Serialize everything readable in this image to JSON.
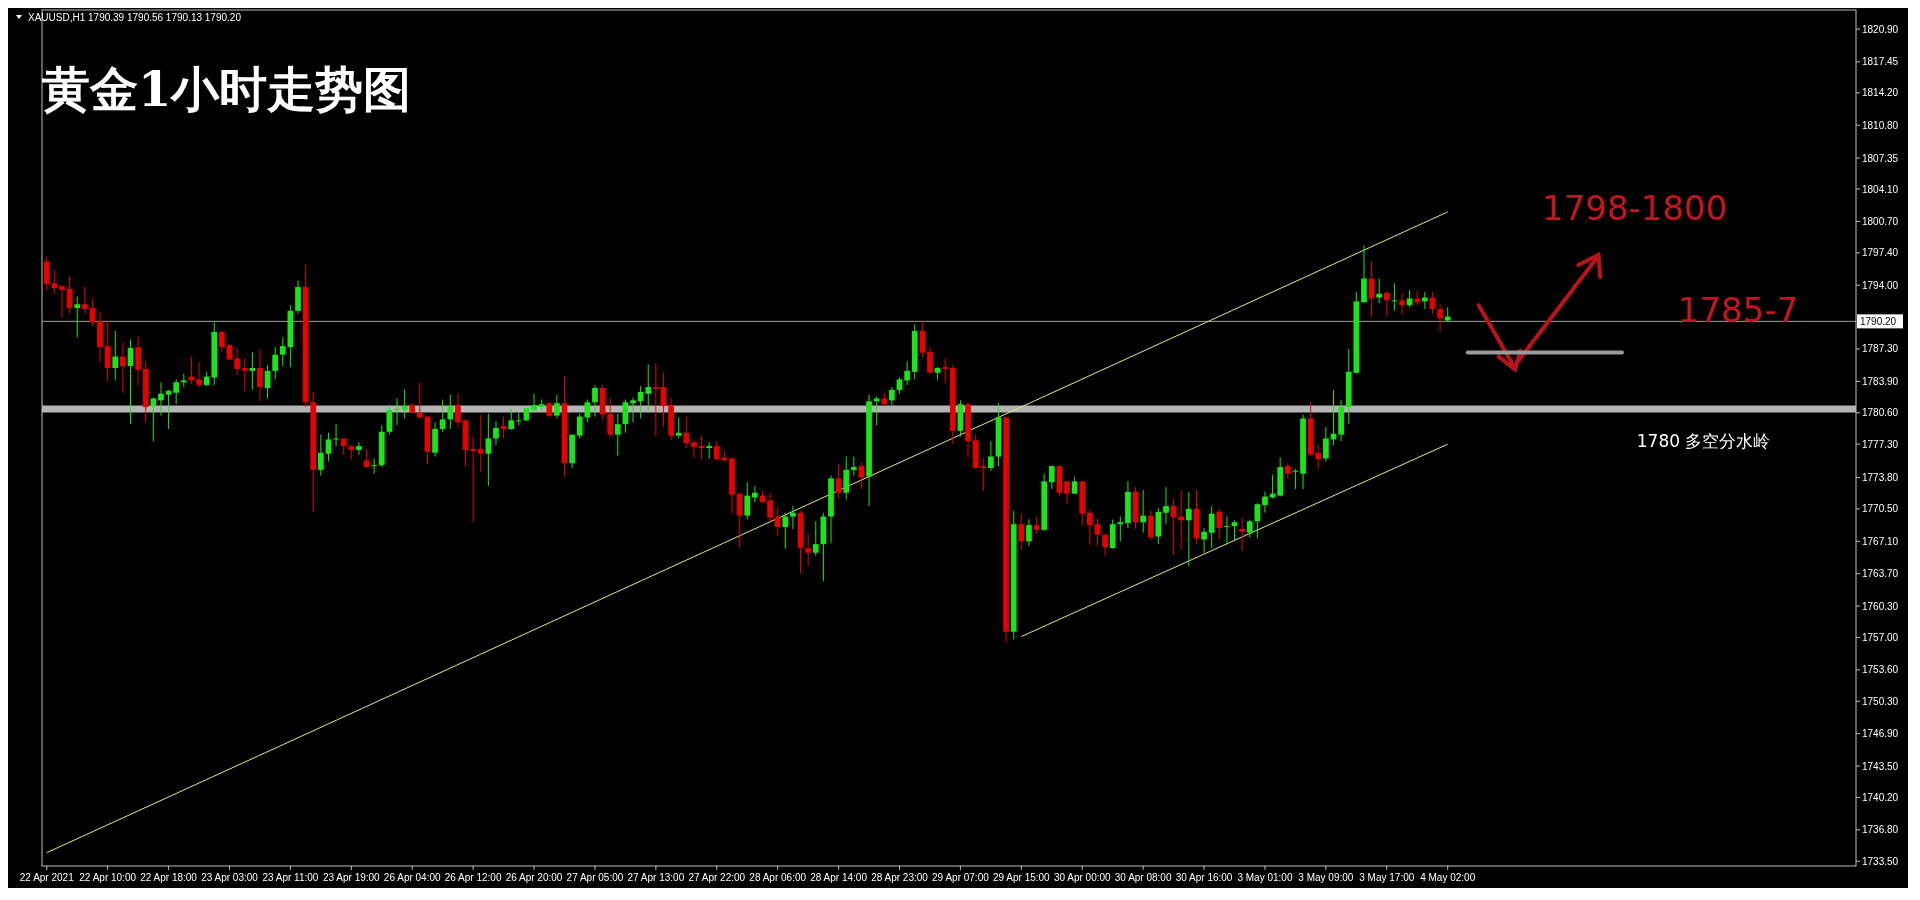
{
  "chart_data": {
    "type": "candlestick",
    "title": "黄金1小时走势图",
    "subtitle": "XAUUSD,H1  1790.39 1790.56 1790.13 1790.20",
    "categories": [
      "22 Apr 2021",
      null,
      null,
      null,
      null,
      null,
      null,
      null,
      "22 Apr 10:00",
      null,
      null,
      null,
      null,
      null,
      null,
      null,
      "22 Apr 18:00",
      null,
      null,
      null,
      null,
      null,
      null,
      null,
      "23 Apr 03:00",
      null,
      null,
      null,
      null,
      null,
      null,
      null,
      "23 Apr 11:00",
      null,
      null,
      null,
      null,
      null,
      null,
      null,
      "23 Apr 19:00",
      null,
      null,
      null,
      null,
      null,
      null,
      null,
      "26 Apr 04:00",
      null,
      null,
      null,
      null,
      null,
      null,
      null,
      "26 Apr 12:00",
      null,
      null,
      null,
      null,
      null,
      null,
      null,
      "26 Apr 20:00",
      null,
      null,
      null,
      null,
      null,
      null,
      null,
      "27 Apr 05:00",
      null,
      null,
      null,
      null,
      null,
      null,
      null,
      "27 Apr 13:00",
      null,
      null,
      null,
      null,
      null,
      null,
      null,
      "27 Apr 22:00",
      null,
      null,
      null,
      null,
      null,
      null,
      null,
      "28 Apr 06:00",
      null,
      null,
      null,
      null,
      null,
      null,
      null,
      "28 Apr 14:00",
      null,
      null,
      null,
      null,
      null,
      null,
      null,
      "28 Apr 23:00",
      null,
      null,
      null,
      null,
      null,
      null,
      null,
      "29 Apr 07:00",
      null,
      null,
      null,
      null,
      null,
      null,
      null,
      "29 Apr 15:00",
      null,
      null,
      null,
      null,
      null,
      null,
      null,
      "30 Apr 00:00",
      null,
      null,
      null,
      null,
      null,
      null,
      null,
      "30 Apr 08:00",
      null,
      null,
      null,
      null,
      null,
      null,
      null,
      "30 Apr 16:00",
      null,
      null,
      null,
      null,
      null,
      null,
      null,
      "3 May 01:00",
      null,
      null,
      null,
      null,
      null,
      null,
      null,
      "3 May 09:00",
      null,
      null,
      null,
      null,
      null,
      null,
      null,
      "3 May 17:00",
      null,
      null,
      null,
      null,
      null,
      null,
      null,
      "4 May 02:00",
      null,
      null,
      null,
      null,
      null,
      null,
      null,
      null,
      null,
      null,
      null,
      null,
      null,
      null,
      null,
      null,
      null,
      null,
      null,
      null,
      null,
      null,
      null,
      null,
      null,
      null,
      null,
      null,
      null,
      null,
      null,
      null,
      null,
      null,
      null,
      null,
      null,
      null,
      null,
      null,
      null,
      null,
      null,
      null,
      null,
      null,
      null,
      null,
      null,
      null,
      null,
      null,
      null
    ],
    "ohlc": [
      [
        1796.5,
        1797.0,
        1793.4,
        1794.1
      ],
      [
        1794.2,
        1795.6,
        1793.1,
        1793.7
      ],
      [
        1793.9,
        1794.0,
        1790.6,
        1793.5
      ],
      [
        1793.6,
        1795.0,
        1791.0,
        1791.6
      ],
      [
        1791.6,
        1792.8,
        1788.5,
        1792.0
      ],
      [
        1792.0,
        1793.9,
        1791.0,
        1791.5
      ],
      [
        1791.6,
        1792.6,
        1789.7,
        1790.1
      ],
      [
        1790.2,
        1791.2,
        1785.9,
        1787.5
      ],
      [
        1787.6,
        1790.2,
        1783.9,
        1785.3
      ],
      [
        1785.3,
        1789.2,
        1784.0,
        1786.5
      ],
      [
        1786.5,
        1788.0,
        1782.7,
        1785.5
      ],
      [
        1785.5,
        1788.3,
        1779.4,
        1787.4
      ],
      [
        1787.5,
        1788.6,
        1783.5,
        1785.1
      ],
      [
        1785.2,
        1786.0,
        1779.6,
        1781.2
      ],
      [
        1781.3,
        1782.2,
        1777.6,
        1782.1
      ],
      [
        1781.9,
        1783.8,
        1780.3,
        1782.6
      ],
      [
        1782.5,
        1783.0,
        1778.9,
        1782.9
      ],
      [
        1782.7,
        1784.1,
        1781.5,
        1783.8
      ],
      [
        1783.8,
        1784.7,
        1783.3,
        1784.0
      ],
      [
        1784.4,
        1786.5,
        1783.6,
        1784.0
      ],
      [
        1784.1,
        1785.9,
        1783.2,
        1783.5
      ],
      [
        1783.5,
        1784.9,
        1783.4,
        1784.4
      ],
      [
        1784.3,
        1790.1,
        1783.5,
        1789.1
      ],
      [
        1789.1,
        1789.2,
        1787.0,
        1787.5
      ],
      [
        1787.7,
        1787.8,
        1786.1,
        1786.2
      ],
      [
        1786.3,
        1787.4,
        1784.6,
        1785.2
      ],
      [
        1785.3,
        1786.3,
        1782.9,
        1785.0
      ],
      [
        1785.0,
        1787.0,
        1783.0,
        1785.3
      ],
      [
        1785.3,
        1787.3,
        1781.8,
        1783.3
      ],
      [
        1783.2,
        1785.6,
        1782.1,
        1785.0
      ],
      [
        1785.0,
        1787.5,
        1784.1,
        1786.7
      ],
      [
        1786.7,
        1788.5,
        1785.5,
        1787.6
      ],
      [
        1787.5,
        1791.9,
        1785.4,
        1791.3
      ],
      [
        1791.3,
        1794.5,
        1791.0,
        1793.8
      ],
      [
        1793.8,
        1796.2,
        1781.2,
        1781.7
      ],
      [
        1781.7,
        1782.8,
        1770.2,
        1774.6
      ],
      [
        1774.6,
        1778.3,
        1774.0,
        1776.4
      ],
      [
        1776.3,
        1778.5,
        1775.5,
        1777.8
      ],
      [
        1777.8,
        1779.4,
        1777.1,
        1777.9
      ],
      [
        1777.9,
        1777.9,
        1776.2,
        1777.1
      ],
      [
        1777.1,
        1777.2,
        1775.7,
        1776.7
      ],
      [
        1776.7,
        1777.5,
        1776.2,
        1777.1
      ],
      [
        1775.6,
        1776.8,
        1774.8,
        1774.9
      ],
      [
        1775.0,
        1775.8,
        1774.2,
        1775.1
      ],
      [
        1775.1,
        1779.3,
        1774.9,
        1778.6
      ],
      [
        1778.6,
        1781.4,
        1778.3,
        1780.9
      ],
      [
        1780.9,
        1782.1,
        1779.3,
        1781.0
      ],
      [
        1780.9,
        1783.1,
        1780.0,
        1781.3
      ],
      [
        1781.4,
        1781.6,
        1780.5,
        1780.6
      ],
      [
        1780.6,
        1783.8,
        1780.0,
        1780.1
      ],
      [
        1780.2,
        1780.3,
        1775.2,
        1776.5
      ],
      [
        1776.4,
        1779.6,
        1776.0,
        1778.9
      ],
      [
        1778.9,
        1782.0,
        1778.6,
        1779.9
      ],
      [
        1779.9,
        1782.5,
        1778.9,
        1781.3
      ],
      [
        1781.4,
        1782.6,
        1779.0,
        1779.6
      ],
      [
        1779.8,
        1779.9,
        1775.0,
        1776.7
      ],
      [
        1776.8,
        1778.1,
        1769.1,
        1776.6
      ],
      [
        1776.8,
        1780.4,
        1774.4,
        1776.3
      ],
      [
        1776.3,
        1780.5,
        1772.9,
        1777.9
      ],
      [
        1777.9,
        1779.7,
        1777.2,
        1779.0
      ],
      [
        1779.2,
        1780.2,
        1777.9,
        1778.9
      ],
      [
        1778.9,
        1781.0,
        1778.8,
        1779.8
      ],
      [
        1779.7,
        1780.6,
        1779.3,
        1779.8
      ],
      [
        1779.8,
        1781.1,
        1779.7,
        1781.1
      ],
      [
        1780.9,
        1782.6,
        1780.6,
        1781.4
      ],
      [
        1781.2,
        1782.0,
        1780.6,
        1781.5
      ],
      [
        1781.6,
        1781.7,
        1780.1,
        1780.3
      ],
      [
        1780.3,
        1782.5,
        1780.0,
        1781.6
      ],
      [
        1781.6,
        1784.4,
        1773.9,
        1775.3
      ],
      [
        1775.3,
        1778.3,
        1774.8,
        1778.3
      ],
      [
        1778.2,
        1780.5,
        1777.9,
        1780.2
      ],
      [
        1780.1,
        1782.0,
        1779.6,
        1781.7
      ],
      [
        1781.7,
        1783.5,
        1780.2,
        1783.2
      ],
      [
        1783.2,
        1783.5,
        1779.9,
        1780.4
      ],
      [
        1780.5,
        1782.2,
        1778.0,
        1778.3
      ],
      [
        1778.3,
        1780.5,
        1776.1,
        1779.4
      ],
      [
        1779.4,
        1782.0,
        1778.5,
        1781.7
      ],
      [
        1781.6,
        1782.2,
        1779.6,
        1781.9
      ],
      [
        1781.8,
        1783.4,
        1780.0,
        1782.8
      ],
      [
        1782.6,
        1785.7,
        1780.6,
        1783.3
      ],
      [
        1783.3,
        1785.8,
        1778.1,
        1783.1
      ],
      [
        1783.3,
        1784.8,
        1779.1,
        1781.3
      ],
      [
        1781.4,
        1782.2,
        1777.7,
        1778.2
      ],
      [
        1778.2,
        1780.1,
        1777.9,
        1778.5
      ],
      [
        1778.5,
        1780.2,
        1776.9,
        1777.4
      ],
      [
        1777.5,
        1777.8,
        1775.9,
        1777.0
      ],
      [
        1777.1,
        1778.2,
        1775.7,
        1776.9
      ],
      [
        1776.9,
        1777.5,
        1775.8,
        1777.1
      ],
      [
        1777.1,
        1777.6,
        1775.6,
        1775.7
      ],
      [
        1775.9,
        1776.6,
        1775.5,
        1775.6
      ],
      [
        1775.8,
        1775.8,
        1770.0,
        1772.0
      ],
      [
        1772.1,
        1772.1,
        1766.5,
        1769.8
      ],
      [
        1769.8,
        1773.3,
        1769.4,
        1771.9
      ],
      [
        1771.7,
        1772.9,
        1771.2,
        1772.2
      ],
      [
        1771.9,
        1772.4,
        1771.1,
        1771.2
      ],
      [
        1771.4,
        1772.2,
        1769.0,
        1769.6
      ],
      [
        1769.7,
        1770.7,
        1767.7,
        1768.6
      ],
      [
        1768.6,
        1770.1,
        1766.3,
        1769.7
      ],
      [
        1769.7,
        1770.8,
        1768.4,
        1770.1
      ],
      [
        1770.1,
        1770.3,
        1763.7,
        1766.4
      ],
      [
        1766.4,
        1767.9,
        1764.5,
        1765.9
      ],
      [
        1765.9,
        1769.2,
        1765.6,
        1766.8
      ],
      [
        1766.8,
        1770.1,
        1762.9,
        1769.7
      ],
      [
        1769.7,
        1774.0,
        1766.9,
        1773.7
      ],
      [
        1773.7,
        1775.2,
        1771.6,
        1772.2
      ],
      [
        1772.2,
        1776.0,
        1771.5,
        1774.6
      ],
      [
        1774.6,
        1776.0,
        1774.0,
        1774.9
      ],
      [
        1775.0,
        1775.4,
        1772.6,
        1773.8
      ],
      [
        1773.9,
        1782.5,
        1770.8,
        1781.8
      ],
      [
        1781.8,
        1782.3,
        1779.3,
        1782.1
      ],
      [
        1782.1,
        1782.7,
        1781.3,
        1781.5
      ],
      [
        1781.9,
        1783.3,
        1781.4,
        1783.0
      ],
      [
        1783.0,
        1784.3,
        1782.6,
        1784.1
      ],
      [
        1784.0,
        1786.0,
        1783.5,
        1785.0
      ],
      [
        1784.9,
        1789.9,
        1784.1,
        1789.2
      ],
      [
        1789.2,
        1790.2,
        1786.4,
        1786.9
      ],
      [
        1787.0,
        1787.5,
        1784.7,
        1784.8
      ],
      [
        1784.8,
        1785.4,
        1784.0,
        1785.3
      ],
      [
        1785.4,
        1786.3,
        1783.7,
        1785.2
      ],
      [
        1785.3,
        1785.6,
        1777.3,
        1778.7
      ],
      [
        1778.7,
        1781.9,
        1778.1,
        1781.5
      ],
      [
        1781.5,
        1781.7,
        1775.9,
        1777.6
      ],
      [
        1777.7,
        1778.3,
        1774.7,
        1774.8
      ],
      [
        1775.0,
        1775.8,
        1772.4,
        1774.8
      ],
      [
        1774.8,
        1777.6,
        1774.5,
        1776.0
      ],
      [
        1776.0,
        1781.6,
        1775.0,
        1780.1
      ],
      [
        1780.1,
        1780.2,
        1756.4,
        1757.6
      ],
      [
        1757.6,
        1770.3,
        1756.8,
        1768.9
      ],
      [
        1768.9,
        1770.0,
        1766.2,
        1767.1
      ],
      [
        1767.1,
        1769.4,
        1766.6,
        1768.8
      ],
      [
        1768.8,
        1769.7,
        1767.9,
        1768.3
      ],
      [
        1768.3,
        1774.2,
        1768.2,
        1773.4
      ],
      [
        1773.3,
        1775.0,
        1772.6,
        1775.0
      ],
      [
        1775.0,
        1775.1,
        1771.8,
        1772.2
      ],
      [
        1773.4,
        1773.4,
        1771.0,
        1772.1
      ],
      [
        1772.1,
        1773.9,
        1772.1,
        1773.4
      ],
      [
        1773.4,
        1773.4,
        1768.7,
        1770.0
      ],
      [
        1770.1,
        1770.5,
        1766.7,
        1768.8
      ],
      [
        1768.9,
        1769.5,
        1766.7,
        1767.8
      ],
      [
        1767.8,
        1767.8,
        1765.6,
        1766.5
      ],
      [
        1766.4,
        1769.4,
        1766.3,
        1768.9
      ],
      [
        1768.9,
        1769.7,
        1767.1,
        1769.1
      ],
      [
        1769.0,
        1773.4,
        1768.5,
        1772.3
      ],
      [
        1772.3,
        1772.8,
        1768.4,
        1769.1
      ],
      [
        1769.1,
        1772.5,
        1768.0,
        1769.8
      ],
      [
        1769.8,
        1770.4,
        1767.2,
        1767.5
      ],
      [
        1767.6,
        1770.6,
        1766.8,
        1770.2
      ],
      [
        1770.1,
        1772.8,
        1768.9,
        1770.8
      ],
      [
        1770.8,
        1771.6,
        1765.7,
        1769.6
      ],
      [
        1769.7,
        1772.4,
        1766.3,
        1769.3
      ],
      [
        1769.3,
        1772.3,
        1764.5,
        1770.5
      ],
      [
        1770.5,
        1772.5,
        1766.8,
        1767.4
      ],
      [
        1767.3,
        1768.5,
        1765.9,
        1768.1
      ],
      [
        1768.0,
        1770.8,
        1766.4,
        1770.0
      ],
      [
        1770.2,
        1770.5,
        1767.3,
        1768.5
      ],
      [
        1768.6,
        1769.7,
        1766.8,
        1768.7
      ],
      [
        1768.7,
        1769.3,
        1767.2,
        1769.1
      ],
      [
        1768.4,
        1769.6,
        1766.1,
        1768.1
      ],
      [
        1768.0,
        1769.4,
        1767.5,
        1769.2
      ],
      [
        1769.2,
        1771.1,
        1767.4,
        1771.0
      ],
      [
        1770.9,
        1772.3,
        1770.1,
        1771.8
      ],
      [
        1771.7,
        1774.1,
        1771.6,
        1772.1
      ],
      [
        1771.9,
        1775.9,
        1771.8,
        1774.9
      ],
      [
        1775.0,
        1775.3,
        1773.7,
        1774.2
      ],
      [
        1774.4,
        1774.7,
        1772.6,
        1774.5
      ],
      [
        1774.2,
        1780.4,
        1772.6,
        1780.0
      ],
      [
        1780.0,
        1781.7,
        1776.0,
        1776.2
      ],
      [
        1776.4,
        1777.2,
        1774.7,
        1775.7
      ],
      [
        1775.8,
        1779.1,
        1775.5,
        1777.9
      ],
      [
        1777.8,
        1783.0,
        1777.2,
        1778.4
      ],
      [
        1778.3,
        1781.9,
        1777.6,
        1781.2
      ],
      [
        1781.2,
        1787.3,
        1779.4,
        1784.9
      ],
      [
        1784.8,
        1793.3,
        1784.7,
        1792.3
      ],
      [
        1792.2,
        1798.2,
        1792.2,
        1794.7
      ],
      [
        1794.7,
        1796.5,
        1790.7,
        1792.6
      ],
      [
        1792.7,
        1794.7,
        1792.1,
        1793.1
      ],
      [
        1793.2,
        1793.4,
        1790.7,
        1792.4
      ],
      [
        1792.3,
        1794.2,
        1791.3,
        1792.4
      ],
      [
        1792.4,
        1793.2,
        1790.9,
        1791.9
      ],
      [
        1791.9,
        1793.5,
        1791.7,
        1792.6
      ],
      [
        1792.6,
        1793.4,
        1791.9,
        1792.2
      ],
      [
        1792.3,
        1793.3,
        1791.5,
        1792.7
      ],
      [
        1792.7,
        1793.3,
        1791.0,
        1791.5
      ],
      [
        1791.5,
        1792.0,
        1789.1,
        1790.5
      ],
      [
        1790.3,
        1791.7,
        1790.1,
        1790.7
      ],
      null,
      null,
      null,
      null,
      null,
      null,
      null,
      null,
      null,
      null,
      null,
      null,
      null,
      null,
      null,
      null,
      null,
      null,
      null,
      null,
      null,
      null,
      null,
      null,
      null,
      null,
      null,
      null,
      null,
      null,
      null,
      null,
      null,
      null,
      null,
      null,
      null,
      null,
      null,
      null,
      null,
      null,
      null,
      null,
      null,
      null,
      null,
      null,
      null,
      null,
      null,
      null,
      null
    ],
    "colors": [
      "#e60000",
      "#e60000",
      "#e60000",
      "#e60000",
      "#19e619",
      "#e60000",
      "#e60000",
      "#e60000",
      "#e60000",
      "#19e619",
      "#e60000",
      "#19e619",
      "#e60000",
      "#e60000",
      "#19e619",
      "#19e619",
      "#19e619",
      "#19e619",
      "#19e619",
      "#e60000",
      "#e60000",
      "#19e619",
      "#19e619",
      "#e60000",
      "#e60000",
      "#e60000",
      "#e60000",
      "#19e619",
      "#e60000",
      "#19e619",
      "#19e619",
      "#19e619",
      "#19e619",
      "#19e619",
      "#e60000",
      "#e60000",
      "#19e619",
      "#19e619",
      "#19e619",
      "#e60000",
      "#e60000",
      "#19e619",
      "#e60000",
      "#19e619",
      "#19e619",
      "#19e619",
      "#19e619",
      "#19e619",
      "#e60000",
      "#e60000",
      "#e60000",
      "#19e619",
      "#19e619",
      "#19e619",
      "#e60000",
      "#e60000",
      "#e60000",
      "#e60000",
      "#19e619",
      "#19e619",
      "#e60000",
      "#19e619",
      "#19e619",
      "#19e619",
      "#19e619",
      "#19e619",
      "#e60000",
      "#19e619",
      "#e60000",
      "#19e619",
      "#19e619",
      "#19e619",
      "#19e619",
      "#e60000",
      "#e60000",
      "#19e619",
      "#19e619",
      "#19e619",
      "#19e619",
      "#19e619",
      "#e60000",
      "#e60000",
      "#e60000",
      "#19e619",
      "#e60000",
      "#e60000",
      "#e60000",
      "#19e619",
      "#e60000",
      "#e60000",
      "#e60000",
      "#e60000",
      "#19e619",
      "#19e619",
      "#e60000",
      "#e60000",
      "#e60000",
      "#19e619",
      "#19e619",
      "#e60000",
      "#e60000",
      "#19e619",
      "#19e619",
      "#19e619",
      "#e60000",
      "#19e619",
      "#19e619",
      "#e60000",
      "#19e619",
      "#19e619",
      "#e60000",
      "#19e619",
      "#19e619",
      "#19e619",
      "#19e619",
      "#e60000",
      "#e60000",
      "#19e619",
      "#e60000",
      "#e60000",
      "#19e619",
      "#e60000",
      "#e60000",
      "#e60000",
      "#19e619",
      "#19e619",
      "#e60000",
      "#19e619",
      "#e60000",
      "#19e619",
      "#e60000",
      "#19e619",
      "#19e619",
      "#e60000",
      "#e60000",
      "#19e619",
      "#e60000",
      "#e60000",
      "#e60000",
      "#e60000",
      "#19e619",
      "#19e619",
      "#19e619",
      "#e60000",
      "#19e619",
      "#e60000",
      "#19e619",
      "#19e619",
      "#e60000",
      "#e60000",
      "#19e619",
      "#e60000",
      "#19e619",
      "#19e619",
      "#e60000",
      "#19e619",
      "#19e619",
      "#e60000",
      "#19e619",
      "#19e619",
      "#19e619",
      "#19e619",
      "#19e619",
      "#e60000",
      "#19e619",
      "#19e619",
      "#e60000",
      "#e60000",
      "#19e619",
      "#19e619",
      "#19e619",
      "#19e619",
      "#19e619",
      "#19e619",
      "#e60000",
      "#19e619",
      "#e60000",
      "#19e619",
      "#e60000",
      "#19e619",
      "#e60000",
      "#19e619",
      "#e60000",
      "#e60000",
      "#19e619",
      null,
      null,
      null,
      null,
      null,
      null,
      null,
      null,
      null,
      null,
      null,
      null,
      null,
      null,
      null,
      null,
      null,
      null,
      null,
      null,
      null,
      null,
      null,
      null,
      null,
      null,
      null,
      null,
      null,
      null,
      null,
      null,
      null,
      null,
      null,
      null,
      null,
      null,
      null,
      null,
      null,
      null,
      null,
      null,
      null,
      null,
      null,
      null,
      null,
      null,
      null,
      null,
      null
    ],
    "series": [
      {
        "type": "line",
        "color": "#e8e87a",
        "x": [
          "22 Apr 2021",
          "4 May 02:00"
        ],
        "values": [
          1734.4,
          1801.7
        ]
      },
      {
        "type": "line",
        "color": "#e8e87a",
        "x": [
          "29 Apr 15:00",
          "4 May 02:00"
        ],
        "values": [
          1757.1,
          1777.3
        ]
      }
    ],
    "ylim": [
      1733.0,
      1822.9
    ],
    "yticks": [
      {
        "value": 1820.9,
        "label": "1820.90"
      },
      1817.45,
      {
        "value": 1814.2,
        "label": "1814.20"
      },
      {
        "value": 1810.8,
        "label": "1810.80"
      },
      1807.35,
      {
        "value": 1804.1,
        "label": "1804.10"
      },
      {
        "value": 1800.7,
        "label": "1800.70"
      },
      {
        "value": 1797.4,
        "label": "1797.40"
      },
      {
        "value": 1794.0,
        "label": "1794.00"
      },
      {
        "value": 1787.3,
        "label": "1787.30"
      },
      {
        "value": 1783.9,
        "label": "1783.90"
      },
      {
        "value": 1780.6,
        "label": "1780.60"
      },
      {
        "value": 1777.3,
        "label": "1777.30"
      },
      {
        "value": 1773.8,
        "label": "1773.80"
      },
      {
        "value": 1770.5,
        "label": "1770.50"
      },
      {
        "value": 1767.1,
        "label": "1767.10"
      },
      {
        "value": 1763.7,
        "label": "1763.70"
      },
      {
        "value": 1760.3,
        "label": "1760.30"
      },
      {
        "value": 1757.0,
        "label": "1757.00"
      },
      {
        "value": 1753.6,
        "label": "1753.60"
      },
      {
        "value": 1750.3,
        "label": "1750.30"
      },
      {
        "value": 1746.9,
        "label": "1746.90"
      },
      {
        "value": 1743.5,
        "label": "1743.50"
      },
      {
        "value": 1740.2,
        "label": "1740.20"
      },
      {
        "value": 1736.8,
        "label": "1736.80"
      },
      {
        "value": 1733.5,
        "label": "1733.50"
      }
    ],
    "ref_lines": [
      {
        "axis": "y",
        "value": 1790.2,
        "label": "1790.20",
        "color": "#a0a0a0"
      },
      {
        "axis": "y",
        "value": 1781.0,
        "color": "#b4b4b4"
      }
    ],
    "annotations": [
      "1798-1800",
      "1785-7",
      "1780  多空分水岭"
    ],
    "grid": false
  }
}
